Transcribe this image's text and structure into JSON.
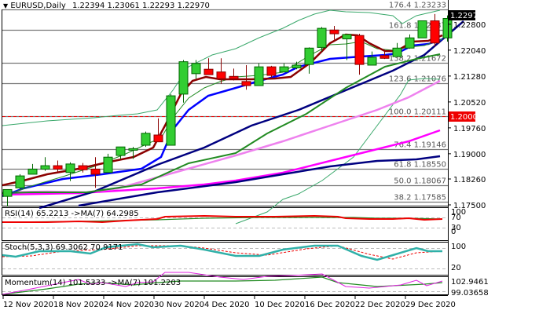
{
  "header": {
    "symbol": "EURUSD,Daily",
    "ohlc": "1.22394 1.23061 1.22293 1.22970"
  },
  "price_axis": {
    "labels": [
      "1.22800",
      "1.22040",
      "1.21280",
      "1.20520",
      "1.19760",
      "1.19000",
      "1.18260",
      "1.17500"
    ],
    "current_price": "1.22970",
    "marked_level": "1.20000"
  },
  "fib_levels": [
    {
      "label": "176.4 1.23233",
      "value": 1.23233
    },
    {
      "label": "161.8 1.22637",
      "value": 1.22637
    },
    {
      "label": "138.2 1.21672",
      "value": 1.21672
    },
    {
      "label": "123.6 1.21076",
      "value": 1.21076
    },
    {
      "label": "100.0 1.20111",
      "value": 1.20111
    },
    {
      "label": "76.4 1.19146",
      "value": 1.19146
    },
    {
      "label": "61.8 1.18550",
      "value": 1.1855
    },
    {
      "label": "50.0 1.18067",
      "value": 1.18067
    },
    {
      "label": "38.2 1.17585",
      "value": 1.17585
    }
  ],
  "indicators": {
    "rsi": {
      "label": "RSI(14) 65.2213  ->MA(7) 64.2985",
      "axis": [
        "100",
        "70",
        "30",
        "0"
      ]
    },
    "stoch": {
      "label": "Stoch(5,3,3) 69.3062 70.9171",
      "axis": [
        "100",
        "80",
        "20",
        "0"
      ]
    },
    "momentum": {
      "label": "Momentum(14) 101.5333  ->MA(7) 101.2203",
      "axis": [
        "102.9461",
        "99.03658"
      ]
    }
  },
  "x_axis": {
    "labels": [
      "12 Nov 2020",
      "18 Nov 2020",
      "24 Nov 2020",
      "30 Nov 2020",
      "4 Dec 2020",
      "10 Dec 2020",
      "16 Dec 2020",
      "22 Dec 2020",
      "29 Dec 2020"
    ]
  },
  "chart_data": {
    "type": "candlestick",
    "title": "EURUSD, Daily",
    "ylim": [
      1.1735,
      1.234
    ],
    "candles": [
      {
        "o": 1.1775,
        "h": 1.1795,
        "l": 1.1745,
        "c": 1.1795
      },
      {
        "o": 1.18,
        "h": 1.184,
        "l": 1.1795,
        "c": 1.1835
      },
      {
        "o": 1.184,
        "h": 1.187,
        "l": 1.184,
        "c": 1.1855
      },
      {
        "o": 1.1855,
        "h": 1.189,
        "l": 1.185,
        "c": 1.1865
      },
      {
        "o": 1.1865,
        "h": 1.188,
        "l": 1.1847,
        "c": 1.1855
      },
      {
        "o": 1.1845,
        "h": 1.1875,
        "l": 1.182,
        "c": 1.187
      },
      {
        "o": 1.1865,
        "h": 1.1873,
        "l": 1.1845,
        "c": 1.1853
      },
      {
        "o": 1.1855,
        "h": 1.189,
        "l": 1.18,
        "c": 1.184
      },
      {
        "o": 1.1845,
        "h": 1.19,
        "l": 1.1845,
        "c": 1.189
      },
      {
        "o": 1.1895,
        "h": 1.192,
        "l": 1.1885,
        "c": 1.192
      },
      {
        "o": 1.1915,
        "h": 1.192,
        "l": 1.1885,
        "c": 1.1915
      },
      {
        "o": 1.1925,
        "h": 1.1965,
        "l": 1.192,
        "c": 1.196
      },
      {
        "o": 1.1955,
        "h": 1.2004,
        "l": 1.1945,
        "c": 1.1935
      },
      {
        "o": 1.1925,
        "h": 1.2075,
        "l": 1.1925,
        "c": 1.207
      },
      {
        "o": 1.2075,
        "h": 1.2175,
        "l": 1.205,
        "c": 1.217
      },
      {
        "o": 1.2135,
        "h": 1.2175,
        "l": 1.212,
        "c": 1.2165
      },
      {
        "o": 1.2148,
        "h": 1.218,
        "l": 1.214,
        "c": 1.2132
      },
      {
        "o": 1.214,
        "h": 1.218,
        "l": 1.2105,
        "c": 1.212
      },
      {
        "o": 1.2127,
        "h": 1.215,
        "l": 1.2115,
        "c": 1.212
      },
      {
        "o": 1.2112,
        "h": 1.216,
        "l": 1.2088,
        "c": 1.21
      },
      {
        "o": 1.21,
        "h": 1.2165,
        "l": 1.21,
        "c": 1.2155
      },
      {
        "o": 1.2155,
        "h": 1.2158,
        "l": 1.2125,
        "c": 1.213
      },
      {
        "o": 1.214,
        "h": 1.2165,
        "l": 1.214,
        "c": 1.2155
      },
      {
        "o": 1.2152,
        "h": 1.217,
        "l": 1.2148,
        "c": 1.216
      },
      {
        "o": 1.2162,
        "h": 1.2212,
        "l": 1.2135,
        "c": 1.221
      },
      {
        "o": 1.2212,
        "h": 1.2272,
        "l": 1.22,
        "c": 1.2268
      },
      {
        "o": 1.2263,
        "h": 1.2275,
        "l": 1.2235,
        "c": 1.2252
      },
      {
        "o": 1.2237,
        "h": 1.2247,
        "l": 1.2175,
        "c": 1.225
      },
      {
        "o": 1.2247,
        "h": 1.2252,
        "l": 1.2132,
        "c": 1.2162
      },
      {
        "o": 1.216,
        "h": 1.22,
        "l": 1.216,
        "c": 1.2183
      },
      {
        "o": 1.2188,
        "h": 1.2203,
        "l": 1.2178,
        "c": 1.218
      },
      {
        "o": 1.2185,
        "h": 1.2225,
        "l": 1.2185,
        "c": 1.221
      },
      {
        "o": 1.221,
        "h": 1.225,
        "l": 1.2208,
        "c": 1.224
      },
      {
        "o": 1.224,
        "h": 1.229,
        "l": 1.224,
        "c": 1.229
      },
      {
        "o": 1.229,
        "h": 1.231,
        "l": 1.2215,
        "c": 1.2225
      },
      {
        "o": 1.224,
        "h": 1.2306,
        "l": 1.2229,
        "c": 1.2297
      }
    ]
  }
}
